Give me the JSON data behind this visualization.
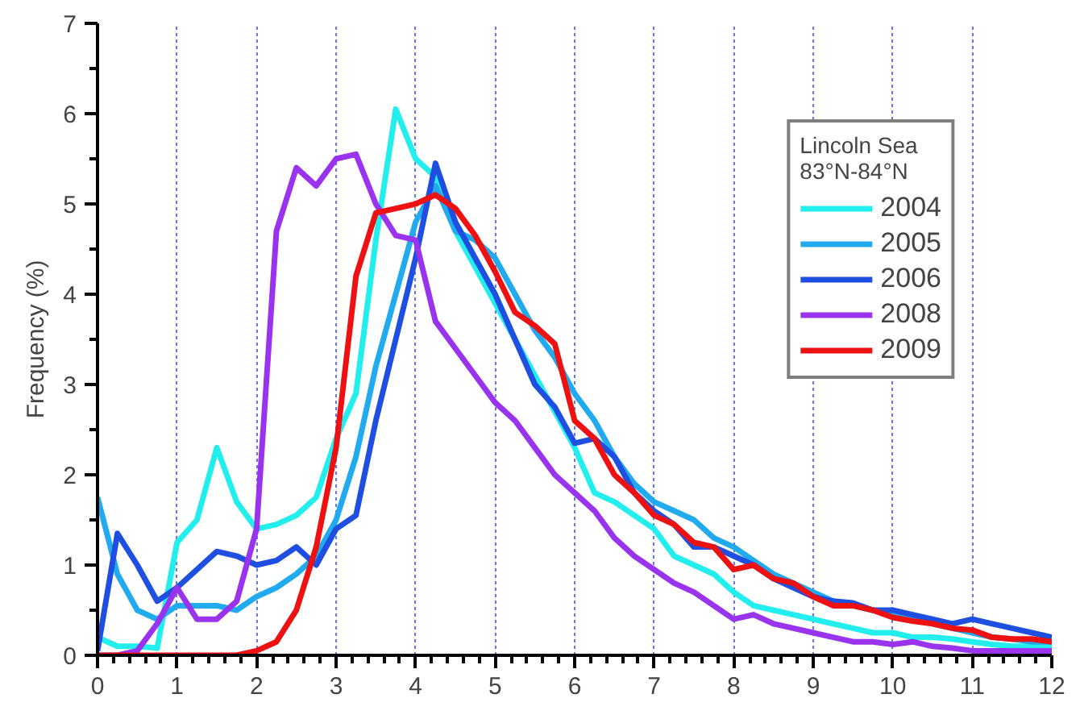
{
  "chart_data": {
    "type": "line",
    "ylabel": "Frequency (%)",
    "legend_title": "Lincoln Sea\n83°N-84°N",
    "legend": "top right",
    "grid": "x",
    "line_style": "solid",
    "marker": "none",
    "x": [
      0,
      0.25,
      0.5,
      0.75,
      1,
      1.25,
      1.5,
      1.75,
      2,
      2.25,
      2.5,
      2.75,
      3,
      3.25,
      3.5,
      3.75,
      4,
      4.25,
      4.5,
      4.75,
      5,
      5.25,
      5.5,
      5.75,
      6,
      6.25,
      6.5,
      6.75,
      7,
      7.25,
      7.5,
      7.75,
      8,
      8.25,
      8.5,
      8.75,
      9,
      9.25,
      9.5,
      9.75,
      10,
      10.25,
      10.5,
      10.75,
      11,
      11.25,
      11.5,
      11.75,
      12
    ],
    "xlim": [
      0,
      12
    ],
    "xticks": [
      0,
      1,
      2,
      3,
      4,
      5,
      6,
      7,
      8,
      9,
      10,
      11,
      12
    ],
    "ylim": [
      0,
      7
    ],
    "yticks": [
      0,
      1,
      2,
      3,
      4,
      5,
      6,
      7
    ],
    "series": [
      {
        "name": "2004",
        "color": "#22eeee",
        "values": [
          0.2,
          0.1,
          0.1,
          0.08,
          1.25,
          1.5,
          2.3,
          1.7,
          1.4,
          1.45,
          1.55,
          1.75,
          2.4,
          2.9,
          4.6,
          6.05,
          5.5,
          5.3,
          4.7,
          4.3,
          3.9,
          3.5,
          3.1,
          2.7,
          2.3,
          1.8,
          1.7,
          1.55,
          1.4,
          1.1,
          1.0,
          0.9,
          0.7,
          0.55,
          0.5,
          0.45,
          0.4,
          0.35,
          0.3,
          0.25,
          0.25,
          0.2,
          0.2,
          0.18,
          0.15,
          0.12,
          0.1,
          0.1,
          0.1
        ]
      },
      {
        "name": "2005",
        "color": "#22aaee",
        "values": [
          1.75,
          0.9,
          0.5,
          0.4,
          0.55,
          0.55,
          0.55,
          0.5,
          0.65,
          0.75,
          0.9,
          1.1,
          1.5,
          2.2,
          3.2,
          4.0,
          4.8,
          5.2,
          4.7,
          4.6,
          4.4,
          4.0,
          3.6,
          3.3,
          2.9,
          2.6,
          2.2,
          1.9,
          1.7,
          1.6,
          1.5,
          1.3,
          1.2,
          1.05,
          0.9,
          0.8,
          0.7,
          0.6,
          0.55,
          0.5,
          0.45,
          0.4,
          0.35,
          0.3,
          0.25,
          0.2,
          0.18,
          0.15,
          0.15
        ]
      },
      {
        "name": "2006",
        "color": "#1f4fe0",
        "values": [
          0.05,
          1.35,
          1.0,
          0.6,
          0.75,
          0.95,
          1.15,
          1.1,
          1.0,
          1.05,
          1.2,
          1.0,
          1.4,
          1.55,
          2.6,
          3.5,
          4.4,
          5.45,
          4.8,
          4.4,
          4.0,
          3.5,
          3.0,
          2.75,
          2.35,
          2.4,
          2.2,
          1.8,
          1.6,
          1.45,
          1.2,
          1.2,
          1.1,
          1.0,
          0.85,
          0.75,
          0.65,
          0.6,
          0.58,
          0.5,
          0.5,
          0.45,
          0.4,
          0.35,
          0.4,
          0.35,
          0.3,
          0.25,
          0.2
        ]
      },
      {
        "name": "2008",
        "color": "#9933ee",
        "values": [
          0,
          0,
          0.05,
          0.35,
          0.75,
          0.4,
          0.4,
          0.6,
          1.4,
          4.7,
          5.4,
          5.2,
          5.5,
          5.55,
          5.0,
          4.65,
          4.6,
          3.7,
          3.4,
          3.1,
          2.8,
          2.6,
          2.3,
          2.0,
          1.8,
          1.6,
          1.3,
          1.1,
          0.95,
          0.8,
          0.7,
          0.55,
          0.4,
          0.45,
          0.35,
          0.3,
          0.25,
          0.2,
          0.15,
          0.15,
          0.12,
          0.15,
          0.1,
          0.08,
          0.05,
          0.05,
          0.05,
          0.05,
          0.05
        ]
      },
      {
        "name": "2009",
        "color": "#ee1111",
        "values": [
          0,
          0,
          0,
          0,
          0,
          0,
          0,
          0,
          0.05,
          0.15,
          0.5,
          1.2,
          2.3,
          4.2,
          4.9,
          4.95,
          5.0,
          5.1,
          4.95,
          4.65,
          4.25,
          3.8,
          3.65,
          3.45,
          2.6,
          2.4,
          2.0,
          1.8,
          1.55,
          1.45,
          1.25,
          1.2,
          0.95,
          1.0,
          0.85,
          0.8,
          0.65,
          0.55,
          0.55,
          0.5,
          0.42,
          0.38,
          0.35,
          0.3,
          0.28,
          0.2,
          0.18,
          0.18,
          0.15
        ]
      }
    ]
  }
}
